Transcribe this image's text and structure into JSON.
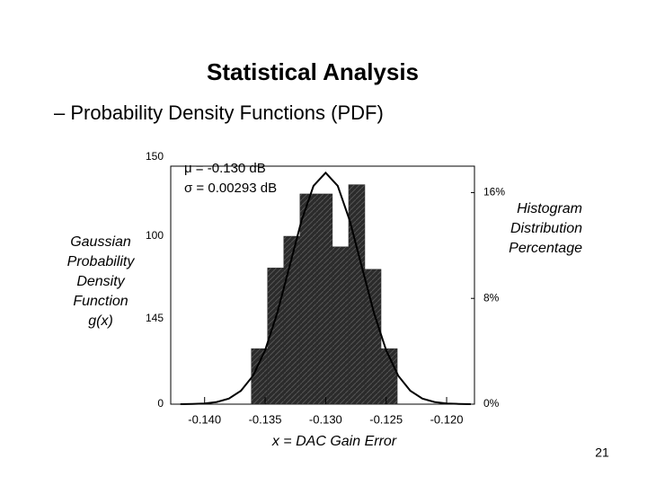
{
  "slide": {
    "title": "Statistical Analysis",
    "subtitle": "– Probability Density Functions (PDF)",
    "page_number": "21"
  },
  "chart_data": {
    "type": "histogram",
    "xlabel": "x = DAC Gain Error",
    "ylabel_lines": [
      "Gaussian",
      "Probability",
      "Density",
      "Function",
      "g(x)"
    ],
    "left_axis_labels": [
      "150",
      "100",
      "145",
      "0"
    ],
    "y2label_lines": [
      "Histogram",
      "Distribution",
      "Percentage"
    ],
    "annotations": [
      "μ = -0.130 dB",
      "σ = 0.00293 dB"
    ],
    "xlim": [
      -0.1428,
      -0.1177
    ],
    "xticks": [
      {
        "value": -0.14,
        "label": "-0.140"
      },
      {
        "value": -0.135,
        "label": "-0.135"
      },
      {
        "value": -0.13,
        "label": "-0.130"
      },
      {
        "value": -0.125,
        "label": "-0.125"
      },
      {
        "value": -0.12,
        "label": "-0.120"
      }
    ],
    "y2lim": [
      0,
      18
    ],
    "y2ticks": [
      {
        "value": 0,
        "label": "0%"
      },
      {
        "value": 8,
        "label": "8%"
      },
      {
        "value": 16,
        "label": "16%"
      }
    ],
    "bins": [
      -0.13614,
      -0.1348,
      -0.13346,
      -0.13212,
      -0.13078,
      -0.12944,
      -0.1281,
      -0.12676,
      -0.12542,
      -0.12408
    ],
    "values": [
      4.2,
      10.3,
      12.7,
      15.9,
      15.9,
      11.9,
      16.6,
      10.2,
      4.2
    ],
    "color": "#2b2b2b",
    "curve": {
      "color": "#000000",
      "x": [
        -0.142,
        -0.141,
        -0.14,
        -0.139,
        -0.138,
        -0.137,
        -0.136,
        -0.135,
        -0.134,
        -0.133,
        -0.132,
        -0.131,
        -0.13,
        -0.129,
        -0.128,
        -0.127,
        -0.126,
        -0.125,
        -0.124,
        -0.123,
        -0.122,
        -0.121,
        -0.12,
        -0.119,
        -0.118
      ],
      "values": [
        0,
        0.02,
        0.05,
        0.16,
        0.42,
        1.01,
        2.15,
        4.08,
        6.89,
        10.36,
        13.86,
        16.51,
        17.5,
        16.51,
        13.86,
        10.36,
        6.89,
        4.08,
        2.15,
        1.01,
        0.42,
        0.16,
        0.05,
        0.02,
        0
      ]
    }
  }
}
